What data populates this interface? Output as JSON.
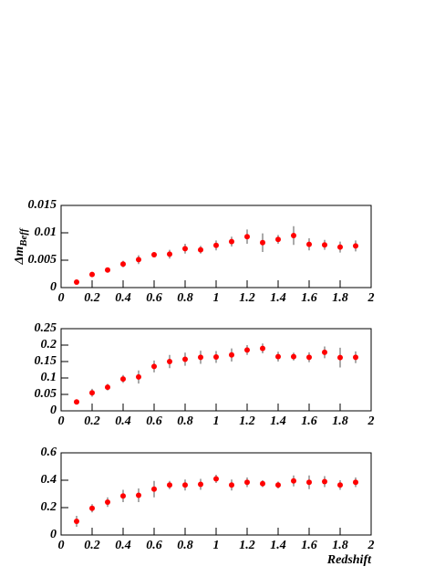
{
  "chart_data": [
    {
      "type": "errorbar",
      "y_label": "Δm",
      "y_label_sub": "Beff",
      "color": "#ff0000",
      "x": [
        0.1,
        0.2,
        0.3,
        0.4,
        0.5,
        0.6,
        0.7,
        0.8,
        0.9,
        1.0,
        1.1,
        1.2,
        1.3,
        1.4,
        1.5,
        1.6,
        1.7,
        1.8,
        1.9
      ],
      "values": [
        0.001,
        0.0024,
        0.0032,
        0.0043,
        0.0051,
        0.006,
        0.0061,
        0.0071,
        0.0069,
        0.0077,
        0.0084,
        0.0093,
        0.0082,
        0.0088,
        0.0095,
        0.0079,
        0.0078,
        0.0074,
        0.0076
      ],
      "errors": [
        0.0003,
        0.0004,
        0.0004,
        0.0006,
        0.0008,
        0.0004,
        0.0008,
        0.0009,
        0.0007,
        0.0009,
        0.0009,
        0.0013,
        0.0017,
        0.0008,
        0.0017,
        0.0011,
        0.0009,
        0.001,
        0.001
      ],
      "xlim": [
        0,
        2
      ],
      "xticks": [
        0,
        0.2,
        0.4,
        0.6,
        0.8,
        1,
        1.2,
        1.4,
        1.6,
        1.8,
        2
      ],
      "ylim": [
        0,
        0.015
      ],
      "yticks": [
        0,
        0.005,
        0.01,
        0.015
      ]
    },
    {
      "type": "errorbar",
      "color": "#ff0000",
      "x": [
        0.1,
        0.2,
        0.3,
        0.4,
        0.5,
        0.6,
        0.7,
        0.8,
        0.9,
        1.0,
        1.1,
        1.2,
        1.3,
        1.4,
        1.5,
        1.6,
        1.7,
        1.8,
        1.9
      ],
      "values": [
        0.027,
        0.055,
        0.072,
        0.097,
        0.103,
        0.135,
        0.15,
        0.157,
        0.163,
        0.164,
        0.17,
        0.185,
        0.19,
        0.165,
        0.165,
        0.163,
        0.178,
        0.162,
        0.163
      ],
      "errors": [
        0.005,
        0.012,
        0.01,
        0.012,
        0.02,
        0.018,
        0.02,
        0.02,
        0.02,
        0.018,
        0.02,
        0.015,
        0.015,
        0.015,
        0.012,
        0.015,
        0.018,
        0.03,
        0.018
      ],
      "xlim": [
        0,
        2
      ],
      "xticks": [
        0,
        0.2,
        0.4,
        0.6,
        0.8,
        1,
        1.2,
        1.4,
        1.6,
        1.8,
        2
      ],
      "ylim": [
        0,
        0.25
      ],
      "yticks": [
        0,
        0.05,
        0.1,
        0.15,
        0.2,
        0.25
      ]
    },
    {
      "type": "errorbar",
      "x_label": "Redshift",
      "color": "#ff0000",
      "x": [
        0.1,
        0.2,
        0.3,
        0.4,
        0.5,
        0.6,
        0.7,
        0.8,
        0.9,
        1.0,
        1.1,
        1.2,
        1.3,
        1.4,
        1.5,
        1.6,
        1.7,
        1.8,
        1.9
      ],
      "values": [
        0.1,
        0.195,
        0.24,
        0.285,
        0.29,
        0.335,
        0.365,
        0.365,
        0.37,
        0.41,
        0.365,
        0.385,
        0.375,
        0.365,
        0.395,
        0.385,
        0.39,
        0.365,
        0.385
      ],
      "errors": [
        0.04,
        0.03,
        0.035,
        0.045,
        0.05,
        0.06,
        0.03,
        0.04,
        0.04,
        0.03,
        0.04,
        0.035,
        0.025,
        0.025,
        0.04,
        0.05,
        0.04,
        0.035,
        0.035
      ],
      "xlim": [
        0,
        2
      ],
      "xticks": [
        0,
        0.2,
        0.4,
        0.6,
        0.8,
        1,
        1.2,
        1.4,
        1.6,
        1.8,
        2
      ],
      "ylim": [
        0,
        0.6
      ],
      "yticks": [
        0,
        0.2,
        0.4,
        0.6
      ]
    }
  ]
}
